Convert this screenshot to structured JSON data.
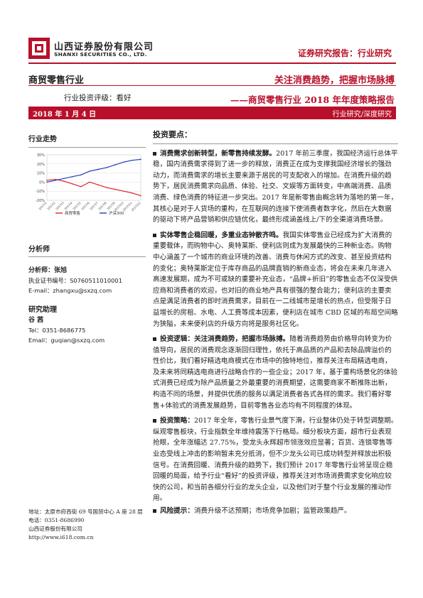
{
  "header": {
    "company_cn": "山西证券股份有限公司",
    "company_en": "SHANXI SECURITIES CO., LTD.",
    "report_type": "证券研究报告：行业研究",
    "industry": "商贸零售行业",
    "rating": "行业投资评级：看好",
    "title_main": "关注消费趋势，把握市场脉搏",
    "title_sub": "——商贸零售行业 2018 年年度策略报告",
    "date": "2018 年 1 月 4 日",
    "report_kind": "行业研究/深度研究"
  },
  "sidebar": {
    "chart_title": "行业走势",
    "analysts_heading": "分析师",
    "analyst_name": "分析师：张旭",
    "analyst_license": "执业证书编号：S0760511010001",
    "analyst_email": "E-mail：zhangxu@sxzq.com",
    "assistant_heading": "研究助理",
    "assistant_name": "谷 茜",
    "assistant_phone": "Tel：0351-8686775",
    "assistant_email": "Email：guqian@sxzq.com",
    "address": "地址：太原市府西街 69 号国贸中心 A 座 28 层",
    "phone": "电话：0351-8686990",
    "company": "山西证券股份有限公司",
    "website": "http://www.i618.com.cn"
  },
  "chart_data": {
    "type": "line",
    "title": "行业走势",
    "x": [
      "2017/1",
      "2017/2",
      "2017/3",
      "2017/4",
      "2017/5",
      "2017/6",
      "2017/7",
      "2017/8",
      "2017/9",
      "2017/10",
      "2017/11",
      "2017/12"
    ],
    "ylim": [
      -20,
      30
    ],
    "yticks": [
      "30%",
      "20%",
      "10%",
      "0%",
      "-10%",
      "-20%"
    ],
    "series": [
      {
        "name": "商贸零售",
        "color": "#e0262c",
        "values": [
          2,
          3,
          1,
          -2,
          -5,
          0,
          -3,
          -6,
          -8,
          -10,
          -12,
          -15
        ]
      },
      {
        "name": "沪深300",
        "color": "#1f3fb8",
        "values": [
          0,
          2,
          4,
          6,
          8,
          12,
          14,
          16,
          19,
          22,
          24,
          25
        ]
      }
    ]
  },
  "main": {
    "heading": "投资要点：",
    "paragraphs": [
      {
        "lead": "消费需求创新转型，新零售持续发酵。",
        "text": "2017 年前三季度，我国经济运行总体平稳，国内消费需求得到了进一步的释放，消费正在成为支撑我国经济增长的强劲动力，而消费需求的增长主要来源于居民的可支配收入的增加。在消费升级的趋势下，居民消费需求向品质、体验、社交、文娱等方面转变，中高端消费、品质消费、绿色消费的特征进一步突出。2017 年是新零售由概念转为落地的第一年，其核心是对于人货场的重构，在互联网的连接下使消费者数字化，然后在大数据的驱动下将产品营销和供应链优化，最终形成涵盖线上/下的全渠道消费场景。"
      },
      {
        "lead": "实体零售企稳回暖，多重业态钟散齐鸣。",
        "text": "我国实体零售业已经成为扩大消费的重要载体，而购物中心、奥特莱斯、便利店则成为发展最快的三种新业态。购物中心涵盖了一个城市的商业环境的改善、消费与休闲方式的改变、甚至投资结构的变化；奥特莱斯定位于库存商品的品牌直销的新商业态，将会在未来几年进入高速发展期，成为不可或缺的重要补充业态，“品牌+折旧”的零售业态不仅深受供应商和消费者的欢迎，也对旧的商业地产具有很强的整合能力；便利店的主要卖点是满足消费者的即时消费需求，目前在一二线城市是增长的热点，但受限于日益增长的房租、水电、人工费等成本因素，便利店在城市 CBD 区域的布局空间略为狭隘，未来便利店的升级方向将是服务社区化。"
      },
      {
        "lead": "投资逻辑：关注消费趋势，把握市场脉搏。",
        "text": "随着消费趋势由价格导向转变为价值导向，居民的消费观念逐渐回归理性，依托于高品质的产品和去除品牌溢价的性价比，我们看好精选电商模式在市场中的独特地位，推荐关注布局精选电商，及未来将同精选电商进行战略合作的一些企业；2017 年，基于重构场景化的体验式消费已经成为除产品质量之外最重要的消费期望，这需要商家不断推陈出新，构造不同的场景，并提供优质的服务以满足消费者各式各样的需求。我们看好零售+体验式的消费发展趋势，目前零售各业态均有不同程度的体现。"
      },
      {
        "lead": "投资策略：",
        "text": "2017 年全年，零售行业景气度下滑，行业整体仍处于转型调整期。纵观零售板块，行业指数全年维持震荡下行格局。细分板块方面，超市行业表现抢眼，全年涨幅达 27.75%，受龙头永辉超市领涨效应显著；百货、连锁零售等业态受线上冲击的影响暂未充分抵消，但不少龙头公司已成功转型并释放出积极信号。在消费回暖、消费升级的趋势下，我们预计 2017 年零售行业将呈现企稳回暖的局面，给予行业“看好”的投资评级，推荐关注对市场消费需求变化响应较快的公司，和当前各细分行业的龙头企业，以及他们对于整个行业发展的推动作用。"
      },
      {
        "lead": "风险提示：",
        "text": "消费升级不达预期；市场竞争加剧；监管政策趋严。"
      }
    ]
  }
}
